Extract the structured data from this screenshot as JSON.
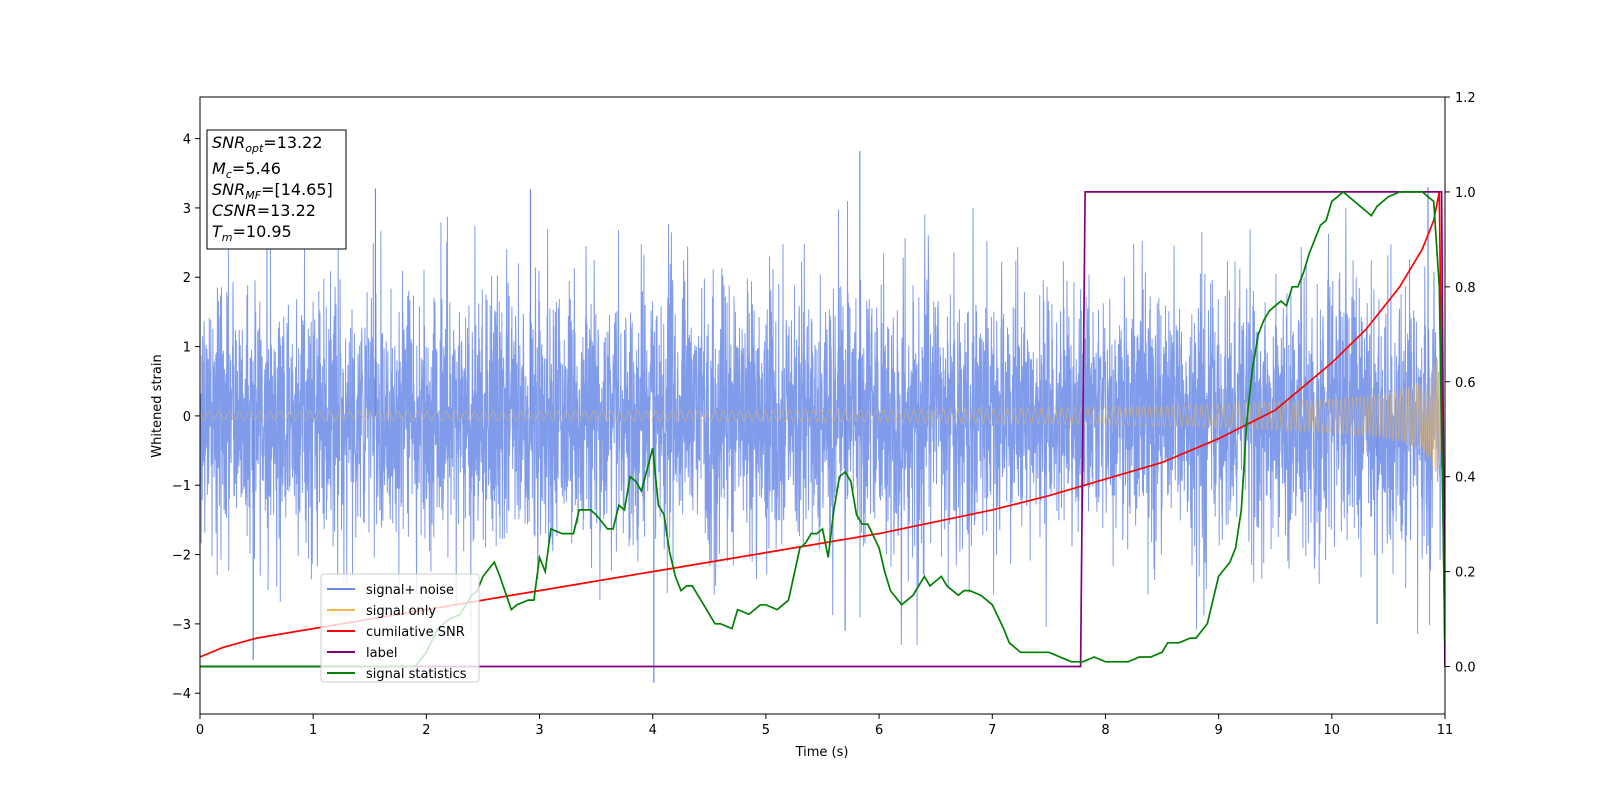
{
  "chart_data": {
    "type": "line",
    "xlabel": "Time (s)",
    "ylabel": "Whitened strain",
    "xlim": [
      0,
      11
    ],
    "ylim": [
      -4.3,
      4.6
    ],
    "y2lim": [
      -0.1,
      1.2
    ],
    "x_ticks": [
      "0",
      "1",
      "2",
      "3",
      "4",
      "5",
      "6",
      "7",
      "8",
      "9",
      "10",
      "11"
    ],
    "y_ticks": [
      "−4",
      "−3",
      "−2",
      "−1",
      "0",
      "1",
      "2",
      "3",
      "4"
    ],
    "y2_ticks": [
      "0.0",
      "0.2",
      "0.4",
      "0.6",
      "0.8",
      "1.0",
      "1.2"
    ],
    "grid": false,
    "annotation": {
      "lines": [
        {
          "base": "SNR",
          "sub": "opt",
          "value": "=13.22"
        },
        {
          "base": "M",
          "sub": "c",
          "value": "=5.46"
        },
        {
          "base": "SNR",
          "sub": "MF",
          "value": "=[14.65]"
        },
        {
          "base": "CSNR",
          "sub": "",
          "value": "=13.22"
        },
        {
          "base": "T",
          "sub": "m",
          "value": "=10.95"
        }
      ]
    },
    "legend": {
      "placement": "lower-left",
      "entries": [
        {
          "label": "signal+ noise",
          "color": "#6a89e6"
        },
        {
          "label": "signal only",
          "color": "#f4b84f"
        },
        {
          "label": "cumilative SNR",
          "color": "#ff0000"
        },
        {
          "label": "label",
          "color": "#800080"
        },
        {
          "label": "signal statistics",
          "color": "#008000"
        }
      ]
    },
    "series": [
      {
        "name": "signal+ noise",
        "axis": "left",
        "color": "#6a89e6",
        "style": "dense noise band",
        "sigma": 0.95,
        "peak_values": [
          {
            "x": 1.55,
            "y": 3.28
          },
          {
            "x": 2.92,
            "y": 3.27
          },
          {
            "x": 5.83,
            "y": 3.82
          },
          {
            "x": 10.85,
            "y": 3.3
          },
          {
            "x": 0.47,
            "y": -3.52
          },
          {
            "x": 4.01,
            "y": -3.85
          },
          {
            "x": 5.7,
            "y": -3.1
          },
          {
            "x": 10.4,
            "y": -3.0
          }
        ]
      },
      {
        "name": "signal only",
        "axis": "left",
        "color": "#f4b84f",
        "style": "chirp",
        "amplitude": [
          [
            0,
            0.06
          ],
          [
            3,
            0.07
          ],
          [
            6,
            0.09
          ],
          [
            8,
            0.13
          ],
          [
            9,
            0.17
          ],
          [
            10,
            0.25
          ],
          [
            10.5,
            0.34
          ],
          [
            10.8,
            0.5
          ],
          [
            10.95,
            0.9
          ]
        ]
      },
      {
        "name": "cumilative SNR",
        "axis": "right",
        "color": "#ff0000",
        "x": [
          0,
          0.2,
          0.5,
          1,
          2,
          3,
          4,
          5,
          6,
          7,
          7.5,
          8,
          8.5,
          9,
          9.5,
          10,
          10.3,
          10.6,
          10.8,
          10.9,
          10.95,
          11.0
        ],
        "y": [
          0.02,
          0.04,
          0.06,
          0.08,
          0.12,
          0.16,
          0.2,
          0.24,
          0.28,
          0.33,
          0.36,
          0.395,
          0.43,
          0.48,
          0.54,
          0.64,
          0.71,
          0.8,
          0.88,
          0.94,
          1.0,
          0.0
        ]
      },
      {
        "name": "label",
        "axis": "right",
        "color": "#800080",
        "x": [
          0,
          7.78,
          7.82,
          10.97,
          11.0
        ],
        "y": [
          0.0,
          0.0,
          1.0,
          1.0,
          0.0
        ]
      },
      {
        "name": "signal statistics",
        "axis": "right",
        "color": "#008000",
        "x": [
          0,
          1.9,
          2.0,
          2.1,
          2.2,
          2.3,
          2.4,
          2.45,
          2.5,
          2.6,
          2.65,
          2.75,
          2.8,
          2.9,
          2.95,
          3.0,
          3.05,
          3.1,
          3.2,
          3.3,
          3.35,
          3.45,
          3.5,
          3.6,
          3.65,
          3.7,
          3.75,
          3.8,
          3.85,
          3.9,
          4.0,
          4.05,
          4.1,
          4.15,
          4.2,
          4.25,
          4.3,
          4.35,
          4.45,
          4.55,
          4.6,
          4.7,
          4.75,
          4.85,
          4.9,
          4.95,
          5.0,
          5.1,
          5.15,
          5.2,
          5.3,
          5.35,
          5.4,
          5.45,
          5.5,
          5.55,
          5.6,
          5.65,
          5.7,
          5.75,
          5.8,
          5.85,
          5.9,
          6.0,
          6.05,
          6.1,
          6.2,
          6.3,
          6.35,
          6.4,
          6.45,
          6.5,
          6.55,
          6.6,
          6.7,
          6.75,
          6.8,
          6.9,
          7.0,
          7.1,
          7.15,
          7.25,
          7.5,
          7.7,
          7.8,
          7.9,
          8.0,
          8.1,
          8.2,
          8.3,
          8.4,
          8.5,
          8.55,
          8.65,
          8.75,
          8.8,
          8.9,
          9.0,
          9.1,
          9.15,
          9.2,
          9.25,
          9.3,
          9.35,
          9.4,
          9.45,
          9.5,
          9.55,
          9.6,
          9.65,
          9.7,
          9.75,
          9.8,
          9.85,
          9.9,
          9.95,
          10.0,
          10.05,
          10.1,
          10.15,
          10.2,
          10.25,
          10.3,
          10.35,
          10.4,
          10.5,
          10.6,
          10.7,
          10.8,
          10.85,
          10.9,
          10.95,
          11.0
        ],
        "y": [
          0.0,
          0.0,
          0.03,
          0.08,
          0.1,
          0.11,
          0.15,
          0.16,
          0.19,
          0.22,
          0.19,
          0.12,
          0.13,
          0.14,
          0.14,
          0.23,
          0.2,
          0.29,
          0.28,
          0.28,
          0.33,
          0.33,
          0.32,
          0.29,
          0.29,
          0.34,
          0.33,
          0.4,
          0.39,
          0.37,
          0.46,
          0.34,
          0.32,
          0.24,
          0.19,
          0.16,
          0.17,
          0.17,
          0.13,
          0.09,
          0.09,
          0.08,
          0.12,
          0.11,
          0.12,
          0.13,
          0.13,
          0.12,
          0.13,
          0.14,
          0.25,
          0.26,
          0.28,
          0.28,
          0.29,
          0.23,
          0.33,
          0.4,
          0.41,
          0.39,
          0.32,
          0.3,
          0.3,
          0.25,
          0.2,
          0.16,
          0.13,
          0.15,
          0.17,
          0.19,
          0.17,
          0.18,
          0.19,
          0.17,
          0.15,
          0.16,
          0.16,
          0.15,
          0.13,
          0.08,
          0.05,
          0.03,
          0.03,
          0.01,
          0.01,
          0.02,
          0.01,
          0.01,
          0.01,
          0.02,
          0.02,
          0.03,
          0.05,
          0.05,
          0.06,
          0.06,
          0.09,
          0.19,
          0.22,
          0.25,
          0.33,
          0.52,
          0.63,
          0.7,
          0.73,
          0.75,
          0.76,
          0.77,
          0.76,
          0.8,
          0.8,
          0.83,
          0.87,
          0.9,
          0.93,
          0.94,
          0.98,
          0.99,
          1.0,
          0.99,
          0.98,
          0.97,
          0.96,
          0.95,
          0.97,
          0.99,
          1.0,
          1.0,
          1.0,
          0.99,
          0.98,
          0.8,
          0.05
        ]
      }
    ]
  }
}
